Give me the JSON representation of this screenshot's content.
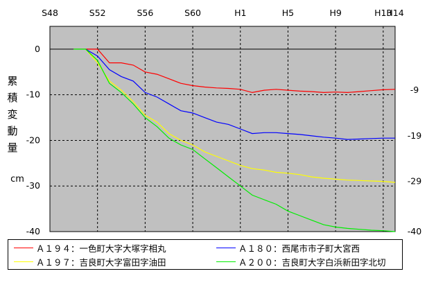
{
  "chart_data": {
    "type": "line",
    "x_ticks": [
      "S48",
      "S52",
      "S56",
      "S60",
      "H1",
      "H5",
      "H9",
      "H13",
      "H14"
    ],
    "y_ticks_left": [
      "0",
      "-10",
      "-20",
      "-30",
      "-40"
    ],
    "y_ticks_right": [
      "-9",
      "-19",
      "-29",
      "-40"
    ],
    "ylabel_chars": [
      "累",
      "積",
      "変",
      "動",
      "量"
    ],
    "yunit": "cm",
    "ylim": [
      -40,
      5
    ],
    "xlim": [
      1973,
      2002
    ],
    "grid": true,
    "legend_position": "bottom",
    "series": [
      {
        "name": "Ａ１９４：一色町大字大塚字相丸",
        "color": "#ff0000",
        "points": [
          [
            1975,
            0
          ],
          [
            1976,
            0
          ],
          [
            1977,
            0
          ],
          [
            1978,
            -3
          ],
          [
            1979,
            -3
          ],
          [
            1980,
            -3.5
          ],
          [
            1981,
            -5
          ],
          [
            1982,
            -5.5
          ],
          [
            1983,
            -6.5
          ],
          [
            1984,
            -7.5
          ],
          [
            1985,
            -8
          ],
          [
            1986,
            -8.3
          ],
          [
            1987,
            -8.5
          ],
          [
            1988,
            -8.6
          ],
          [
            1989,
            -8.8
          ],
          [
            1990,
            -9.5
          ],
          [
            1991,
            -9
          ],
          [
            1992,
            -8.8
          ],
          [
            1993,
            -9
          ],
          [
            1994,
            -9.2
          ],
          [
            1995,
            -9.3
          ],
          [
            1996,
            -9.5
          ],
          [
            1997,
            -9.4
          ],
          [
            1998,
            -9.5
          ],
          [
            1999,
            -9.3
          ],
          [
            2000,
            -9.1
          ],
          [
            2001,
            -8.9
          ],
          [
            2002,
            -8.8
          ]
        ]
      },
      {
        "name": "Ａ１８０：西尾市市子町大宮西",
        "color": "#0000ff",
        "points": [
          [
            1975,
            0
          ],
          [
            1976,
            0
          ],
          [
            1977,
            -1.5
          ],
          [
            1978,
            -4.5
          ],
          [
            1979,
            -6
          ],
          [
            1980,
            -7
          ],
          [
            1981,
            -9.5
          ],
          [
            1982,
            -10.5
          ],
          [
            1983,
            -12
          ],
          [
            1984,
            -13.5
          ],
          [
            1985,
            -14
          ],
          [
            1986,
            -15
          ],
          [
            1987,
            -16
          ],
          [
            1988,
            -16.5
          ],
          [
            1989,
            -17.5
          ],
          [
            1990,
            -18.5
          ],
          [
            1991,
            -18.3
          ],
          [
            1992,
            -18.3
          ],
          [
            1993,
            -18.5
          ],
          [
            1994,
            -18.7
          ],
          [
            1995,
            -19
          ],
          [
            1996,
            -19.3
          ],
          [
            1997,
            -19.5
          ],
          [
            1998,
            -19.8
          ],
          [
            1999,
            -19.7
          ],
          [
            2000,
            -19.6
          ],
          [
            2001,
            -19.5
          ],
          [
            2002,
            -19.5
          ]
        ]
      },
      {
        "name": "Ａ１９７：吉良町大字富田字油田",
        "color": "#ffff00",
        "points": [
          [
            1975,
            0
          ],
          [
            1976,
            0
          ],
          [
            1977,
            -3
          ],
          [
            1978,
            -7
          ],
          [
            1979,
            -9
          ],
          [
            1980,
            -11.5
          ],
          [
            1981,
            -14.5
          ],
          [
            1982,
            -16
          ],
          [
            1983,
            -18.5
          ],
          [
            1984,
            -20
          ],
          [
            1985,
            -21
          ],
          [
            1986,
            -22.5
          ],
          [
            1987,
            -23.5
          ],
          [
            1988,
            -24.5
          ],
          [
            1989,
            -25.5
          ],
          [
            1990,
            -26.2
          ],
          [
            1991,
            -26.5
          ],
          [
            1992,
            -27
          ],
          [
            1993,
            -27.2
          ],
          [
            1994,
            -27.5
          ],
          [
            1995,
            -28
          ],
          [
            1996,
            -28.3
          ],
          [
            1997,
            -28.5
          ],
          [
            1998,
            -28.7
          ],
          [
            1999,
            -28.8
          ],
          [
            2000,
            -28.9
          ],
          [
            2001,
            -29
          ],
          [
            2002,
            -29.2
          ]
        ]
      },
      {
        "name": "Ａ２００：吉良町大字白浜新田字北切",
        "color": "#00ee00",
        "points": [
          [
            1975,
            0
          ],
          [
            1976,
            0
          ],
          [
            1977,
            -2.5
          ],
          [
            1978,
            -7.5
          ],
          [
            1979,
            -9.5
          ],
          [
            1980,
            -12
          ],
          [
            1981,
            -15
          ],
          [
            1982,
            -17
          ],
          [
            1983,
            -19.5
          ],
          [
            1984,
            -21
          ],
          [
            1985,
            -22
          ],
          [
            1986,
            -24
          ],
          [
            1987,
            -26
          ],
          [
            1988,
            -28
          ],
          [
            1989,
            -30
          ],
          [
            1990,
            -32
          ],
          [
            1991,
            -33
          ],
          [
            1992,
            -34
          ],
          [
            1993,
            -35.5
          ],
          [
            1994,
            -36.5
          ],
          [
            1995,
            -37.5
          ],
          [
            1996,
            -38.5
          ],
          [
            1997,
            -39
          ],
          [
            1998,
            -39.3
          ],
          [
            1999,
            -39.5
          ],
          [
            2000,
            -39.7
          ],
          [
            2001,
            -39.8
          ],
          [
            2002,
            -40
          ]
        ]
      }
    ]
  }
}
